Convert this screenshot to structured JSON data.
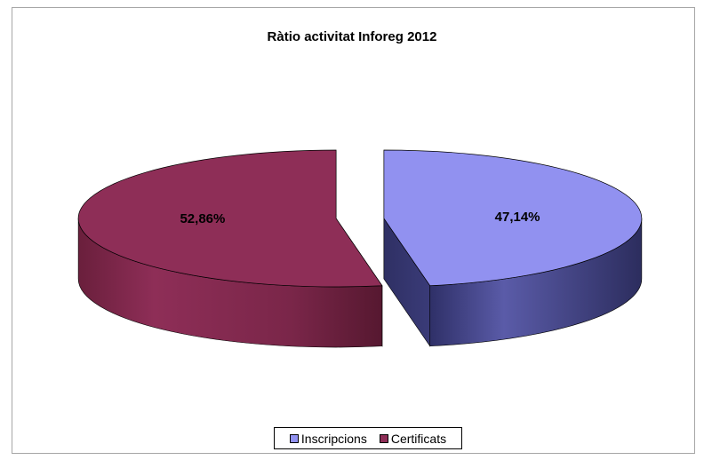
{
  "chart_data": {
    "type": "pie",
    "title": "Ràtio activitat Inforeg 2012",
    "categories": [
      "Inscripcions",
      "Certificats"
    ],
    "values": [
      47.14,
      52.86
    ],
    "labels": [
      "47,14%",
      "52,86%"
    ],
    "colors": [
      "#9191f0",
      "#8e2e57"
    ],
    "legend_position": "bottom",
    "exploded": true,
    "three_d": true
  }
}
